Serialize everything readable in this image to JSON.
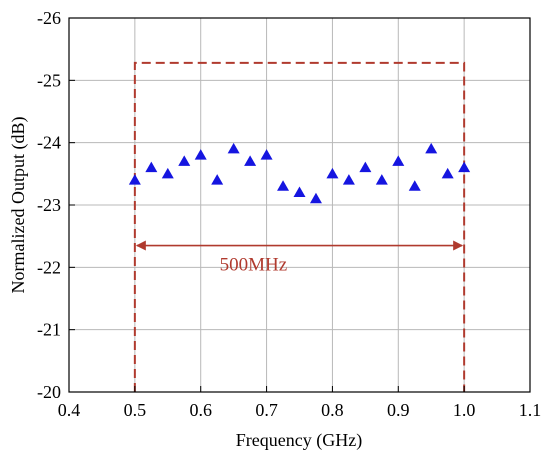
{
  "chart_data": {
    "type": "scatter",
    "title": "",
    "xlabel": "Frequency (GHz)",
    "ylabel": "Normalized Output (dB)",
    "xlim": [
      0.4,
      1.1
    ],
    "ylim": [
      -20,
      -26
    ],
    "y_axis_inverted": true,
    "x_ticks": [
      0.4,
      0.5,
      0.6,
      0.7,
      0.8,
      0.9,
      1.0,
      1.1
    ],
    "x_tick_labels": [
      "0.4",
      "0.5",
      "0.6",
      "0.7",
      "0.8",
      "0.9",
      "1.0",
      "1.1"
    ],
    "y_ticks": [
      -20,
      -21,
      -22,
      -23,
      -24,
      -25,
      -26
    ],
    "y_tick_labels": [
      "-20",
      "-21",
      "-22",
      "-23",
      "-24",
      "-25",
      "-26"
    ],
    "grid": true,
    "legend": "none",
    "marker": "triangle",
    "marker_color": "#1515e0",
    "series": [
      {
        "x": [
          0.5,
          0.525,
          0.55,
          0.575,
          0.6,
          0.625,
          0.65,
          0.675,
          0.7,
          0.725,
          0.75,
          0.775,
          0.8,
          0.825,
          0.85,
          0.875,
          0.9,
          0.925,
          0.95,
          0.975,
          1.0
        ],
        "y": [
          -23.4,
          -23.6,
          -23.5,
          -23.7,
          -23.8,
          -23.4,
          -23.9,
          -23.7,
          -23.8,
          -23.3,
          -23.2,
          -23.1,
          -23.5,
          -23.4,
          -23.6,
          -23.4,
          -23.7,
          -23.3,
          -23.9,
          -23.5,
          -23.6
        ]
      }
    ],
    "annotations": {
      "dashed_box": {
        "x_start": 0.5,
        "x_end": 1.0,
        "y_top": -25.28,
        "y_bottom": -20,
        "color": "#b03a2e"
      },
      "span_arrow": {
        "x_start": 0.5,
        "x_end": 1.0,
        "y": -22.35,
        "color": "#b03a2e"
      },
      "label": {
        "text": "500MHz",
        "x": 0.68,
        "y": -21.95,
        "color": "#b03a2e"
      }
    }
  }
}
